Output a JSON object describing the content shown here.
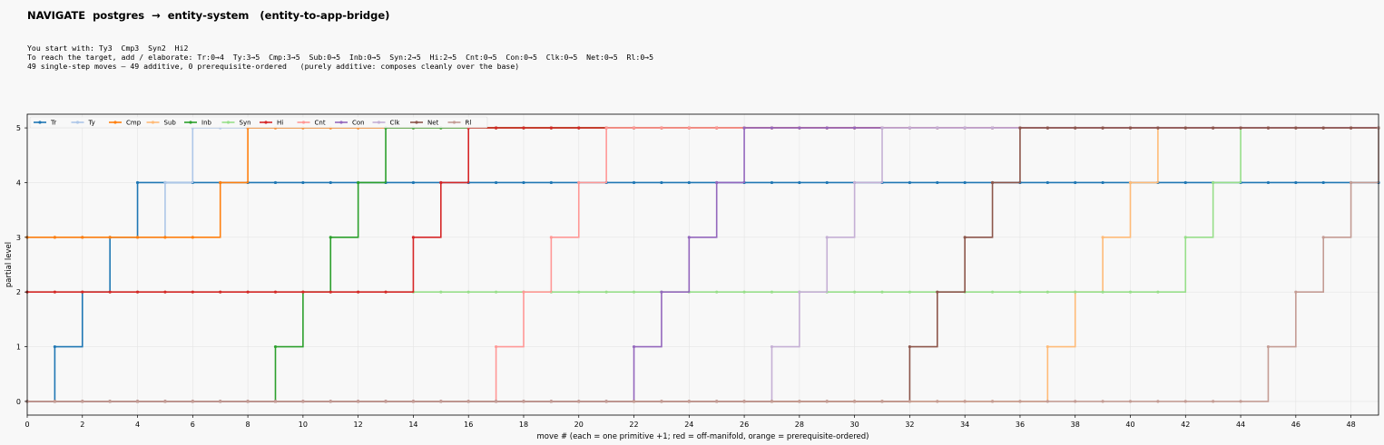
{
  "header": {
    "title": "NAVIGATE  postgres  →  entity-system   (entity-to-app-bridge)",
    "line1": "You start with: Ty3  Cmp3  Syn2  Hi2",
    "line2": "To reach the target, add / elaborate: Tr:0→4  Ty:3→5  Cmp:3→5  Sub:0→5  Inb:0→5  Syn:2→5  Hi:2→5  Cnt:0→5  Con:0→5  Clk:0→5  Net:0→5  Rl:0→5",
    "line3": "49 single-step moves — 49 additive, 0 prerequisite-ordered   (purely additive: composes cleanly over the base)"
  },
  "chart_data": {
    "type": "line",
    "step": "post",
    "xlabel": "move #  (each = one primitive +1; red = off-manifold, orange = prerequisite-ordered)",
    "ylabel": "partial level",
    "xlim": [
      0,
      49
    ],
    "ylim": [
      -0.25,
      5.25
    ],
    "xticks": [
      0,
      2,
      4,
      6,
      8,
      10,
      12,
      14,
      16,
      18,
      20,
      22,
      24,
      26,
      28,
      30,
      32,
      34,
      36,
      38,
      40,
      42,
      44,
      46,
      48
    ],
    "yticks": [
      0,
      1,
      2,
      3,
      4,
      5
    ],
    "grid": true,
    "legend_position": "upper-left",
    "series": [
      {
        "name": "Tr",
        "color": "#1f77b4",
        "start": 0,
        "steps": [
          1,
          2,
          3,
          4
        ]
      },
      {
        "name": "Ty",
        "color": "#aec7e8",
        "start": 3,
        "steps": [
          5,
          6
        ]
      },
      {
        "name": "Cmp",
        "color": "#ff7f0e",
        "start": 3,
        "steps": [
          7,
          8
        ]
      },
      {
        "name": "Sub",
        "color": "#ffbb78",
        "start": 0,
        "steps": [
          37,
          38,
          39,
          40,
          41
        ]
      },
      {
        "name": "Inb",
        "color": "#2ca02c",
        "start": 0,
        "steps": [
          9,
          10,
          11,
          12,
          13
        ]
      },
      {
        "name": "Syn",
        "color": "#98df8a",
        "start": 2,
        "steps": [
          42,
          43,
          44
        ]
      },
      {
        "name": "Hi",
        "color": "#d62728",
        "start": 2,
        "steps": [
          14,
          15,
          16
        ]
      },
      {
        "name": "Cnt",
        "color": "#ff9896",
        "start": 0,
        "steps": [
          17,
          18,
          19,
          20,
          21
        ]
      },
      {
        "name": "Con",
        "color": "#9467bd",
        "start": 0,
        "steps": [
          22,
          23,
          24,
          25,
          26
        ]
      },
      {
        "name": "Clk",
        "color": "#c5b0d5",
        "start": 0,
        "steps": [
          27,
          28,
          29,
          30,
          31
        ]
      },
      {
        "name": "Net",
        "color": "#8c564b",
        "start": 0,
        "steps": [
          32,
          33,
          34,
          35,
          36
        ]
      },
      {
        "name": "Rl",
        "color": "#c49c94",
        "start": 0,
        "steps": [
          45,
          46,
          47,
          48,
          49
        ]
      }
    ]
  }
}
